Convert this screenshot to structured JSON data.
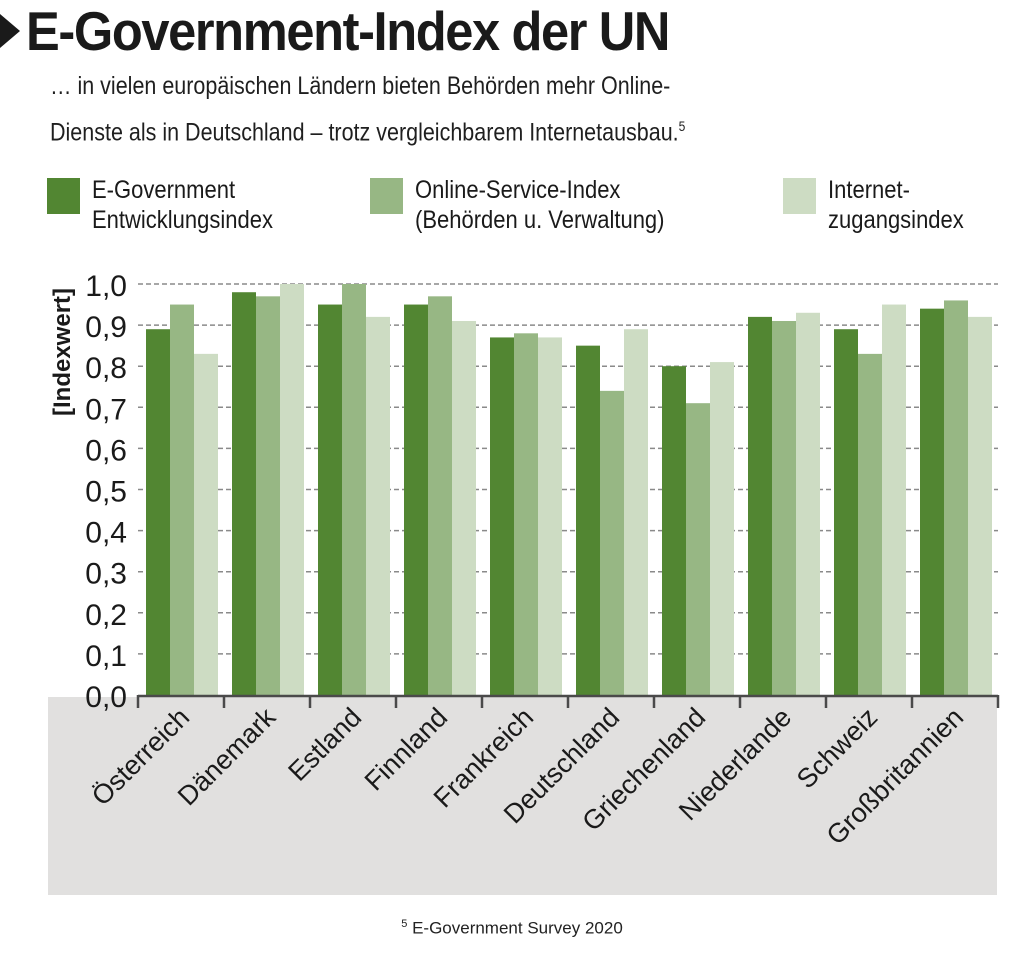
{
  "header": {
    "title": "E-Government-Index der UN",
    "subtitle_line1": "… in vielen europäischen Ländern bieten Behörden mehr Online-",
    "subtitle_line2": "Dienste als in Deutschland – trotz vergleichbarem Internetausbau.",
    "subtitle_footnote_ref": "5"
  },
  "legend": [
    {
      "line1": "E-Government",
      "line2": "Entwicklungsindex",
      "color": "#528632"
    },
    {
      "line1": "Online-Service-Index",
      "line2": "(Behörden u. Verwaltung)",
      "color": "#97b784"
    },
    {
      "line1": "Internet-",
      "line2": "zugangsindex",
      "color": "#cddcc3"
    }
  ],
  "footnote": {
    "ref": "5",
    "text": "E-Government Survey 2020"
  },
  "chart_data": {
    "type": "bar",
    "title": "E-Government-Index der UN",
    "xlabel": "",
    "ylabel": "[Indexwert]",
    "ylim": [
      0,
      1.0
    ],
    "yticks": [
      "0,0",
      "0,1",
      "0,2",
      "0,3",
      "0,4",
      "0,5",
      "0,6",
      "0,7",
      "0,8",
      "0,9",
      "1,0"
    ],
    "ytick_values": [
      0,
      0.1,
      0.2,
      0.3,
      0.4,
      0.5,
      0.6,
      0.7,
      0.8,
      0.9,
      1.0
    ],
    "grid": true,
    "legend_position": "top",
    "categories": [
      "Österreich",
      "Dänemark",
      "Estland",
      "Finnland",
      "Frankreich",
      "Deutschland",
      "Griechenland",
      "Niederlande",
      "Schweiz",
      "Großbritannien"
    ],
    "series": [
      {
        "name": "E-Government Entwicklungsindex",
        "color": "#528632",
        "values": [
          0.89,
          0.98,
          0.95,
          0.95,
          0.87,
          0.85,
          0.8,
          0.92,
          0.89,
          0.94
        ]
      },
      {
        "name": "Online-Service-Index (Behörden u. Verwaltung)",
        "color": "#97b784",
        "values": [
          0.95,
          0.97,
          1.0,
          0.97,
          0.88,
          0.74,
          0.71,
          0.91,
          0.83,
          0.96
        ]
      },
      {
        "name": "Internetzugangsindex",
        "color": "#cddcc3",
        "values": [
          0.83,
          1.0,
          0.92,
          0.91,
          0.87,
          0.89,
          0.81,
          0.93,
          0.95,
          0.92
        ]
      }
    ]
  }
}
